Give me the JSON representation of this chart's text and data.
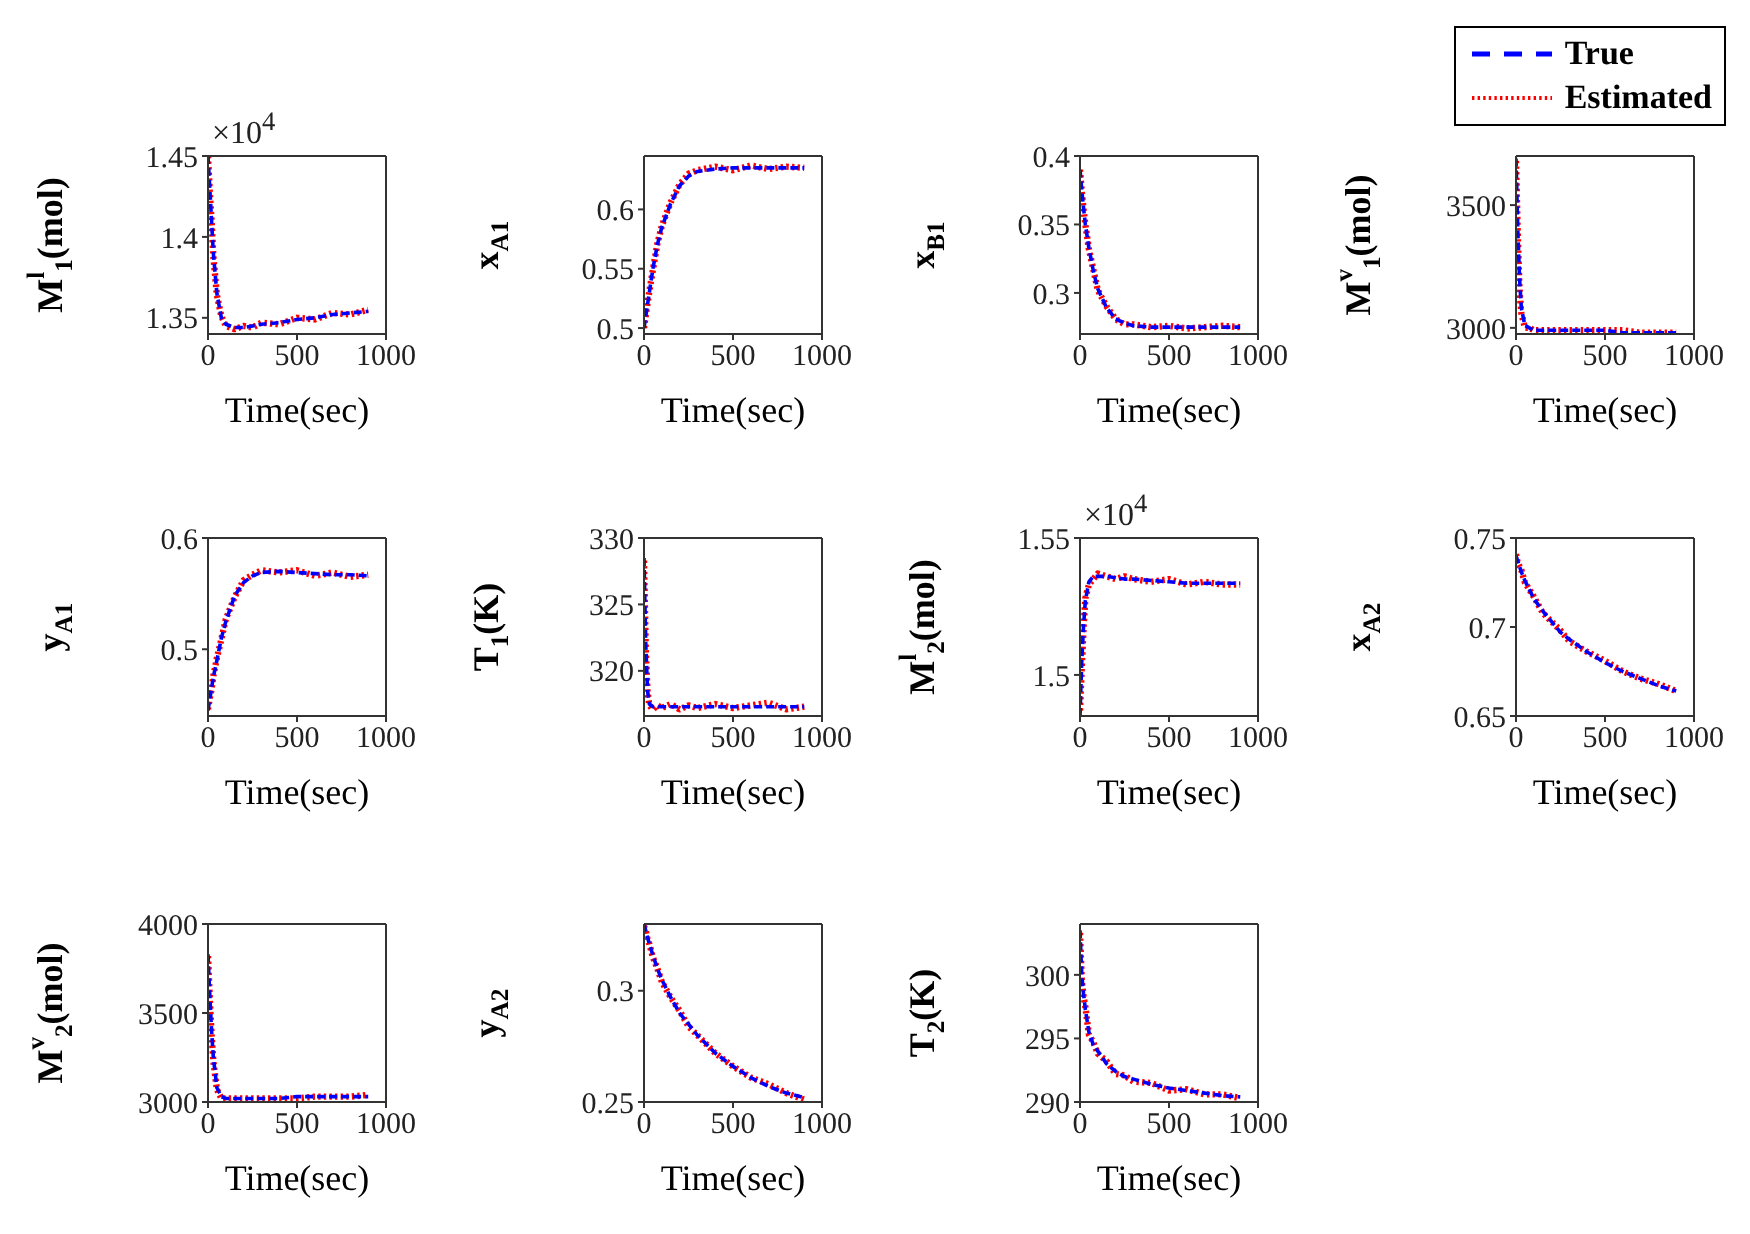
{
  "chart_data": [
    {
      "type": "line",
      "ylabel": "M$^{l}$$_{1}$(mol)",
      "xlabel": "Time(sec)",
      "annotations": [
        "×10$^{4}$"
      ],
      "x": [
        0,
        10,
        20,
        30,
        50,
        75,
        100,
        150,
        200,
        250,
        300,
        400,
        500,
        600,
        700,
        800,
        900
      ],
      "xlim": [
        0,
        1000
      ],
      "xticks": [
        0,
        500,
        1000
      ],
      "ylim": [
        1.34,
        1.45
      ],
      "yticks": [
        1.35,
        1.4,
        1.45
      ],
      "series": [
        {
          "color": "#0000ff",
          "line_style": "dashed",
          "values": [
            1.45,
            1.43,
            1.41,
            1.39,
            1.365,
            1.35,
            1.346,
            1.344,
            1.344,
            1.345,
            1.346,
            1.347,
            1.349,
            1.35,
            1.352,
            1.353,
            1.354
          ]
        },
        {
          "color": "#ff0000",
          "line_style": "dotted",
          "values": [
            1.45,
            1.428,
            1.41,
            1.388,
            1.364,
            1.351,
            1.345,
            1.343,
            1.345,
            1.344,
            1.347,
            1.346,
            1.35,
            1.349,
            1.353,
            1.352,
            1.355
          ]
        }
      ]
    },
    {
      "type": "line",
      "ylabel": "x$_{A1}$",
      "xlabel": "Time(sec)",
      "x": [
        0,
        10,
        20,
        30,
        50,
        75,
        100,
        150,
        200,
        250,
        300,
        400,
        500,
        600,
        700,
        800,
        900
      ],
      "xlim": [
        0,
        1000
      ],
      "xticks": [
        0,
        500,
        1000
      ],
      "ylim": [
        0.495,
        0.645
      ],
      "yticks": [
        0.5,
        0.55,
        0.6
      ],
      "series": [
        {
          "color": "#0000ff",
          "line_style": "dashed",
          "values": [
            0.5,
            0.51,
            0.52,
            0.53,
            0.55,
            0.57,
            0.585,
            0.605,
            0.62,
            0.628,
            0.632,
            0.634,
            0.635,
            0.635,
            0.635,
            0.635,
            0.635
          ]
        },
        {
          "color": "#ff0000",
          "line_style": "dotted",
          "values": [
            0.5,
            0.511,
            0.521,
            0.531,
            0.549,
            0.571,
            0.586,
            0.606,
            0.621,
            0.63,
            0.633,
            0.636,
            0.633,
            0.637,
            0.634,
            0.636,
            0.635
          ]
        }
      ]
    },
    {
      "type": "line",
      "ylabel": "x$_{B1}$",
      "xlabel": "Time(sec)",
      "x": [
        0,
        10,
        20,
        30,
        50,
        75,
        100,
        150,
        200,
        250,
        300,
        400,
        500,
        600,
        700,
        800,
        900
      ],
      "xlim": [
        0,
        1000
      ],
      "xticks": [
        0,
        500,
        1000
      ],
      "ylim": [
        0.27,
        0.4
      ],
      "yticks": [
        0.3,
        0.35,
        0.4
      ],
      "series": [
        {
          "color": "#0000ff",
          "line_style": "dashed",
          "values": [
            0.39,
            0.375,
            0.362,
            0.35,
            0.333,
            0.316,
            0.303,
            0.289,
            0.281,
            0.278,
            0.276,
            0.275,
            0.275,
            0.275,
            0.275,
            0.275,
            0.275
          ]
        },
        {
          "color": "#ff0000",
          "line_style": "dotted",
          "values": [
            0.39,
            0.374,
            0.361,
            0.35,
            0.332,
            0.317,
            0.302,
            0.29,
            0.281,
            0.277,
            0.277,
            0.275,
            0.276,
            0.274,
            0.275,
            0.276,
            0.275
          ]
        }
      ]
    },
    {
      "type": "line",
      "ylabel": "M$^{v}$$_{1}$(mol)",
      "xlabel": "Time(sec)",
      "legend": "top",
      "x": [
        0,
        10,
        20,
        30,
        50,
        75,
        100,
        150,
        200,
        250,
        300,
        400,
        500,
        600,
        700,
        800,
        900
      ],
      "xlim": [
        0,
        1000
      ],
      "xticks": [
        0,
        500,
        1000
      ],
      "ylim": [
        2975,
        3700
      ],
      "yticks": [
        3000,
        3500
      ],
      "series": [
        {
          "name": "True",
          "color": "#0000ff",
          "line_style": "dashed",
          "values": [
            3690,
            3400,
            3200,
            3080,
            3010,
            3000,
            2990,
            2990,
            2990,
            2990,
            2990,
            2990,
            2990,
            2980,
            2980,
            2980,
            2980
          ]
        },
        {
          "name": "Estimated",
          "color": "#ff0000",
          "line_style": "dotted",
          "values": [
            3680,
            3380,
            3150,
            3060,
            3000,
            3000,
            2990,
            2990,
            2990,
            2990,
            2990,
            2990,
            2990,
            2990,
            2980,
            2980,
            2980
          ]
        }
      ]
    },
    {
      "type": "line",
      "ylabel": "y$_{A1}$",
      "xlabel": "Time(sec)",
      "x": [
        0,
        10,
        20,
        30,
        50,
        75,
        100,
        150,
        200,
        250,
        300,
        400,
        500,
        600,
        700,
        800,
        900
      ],
      "xlim": [
        0,
        1000
      ],
      "xticks": [
        0,
        500,
        1000
      ],
      "ylim": [
        0.44,
        0.6
      ],
      "yticks": [
        0.5,
        0.6
      ],
      "series": [
        {
          "color": "#0000ff",
          "line_style": "dashed",
          "values": [
            0.445,
            0.455,
            0.465,
            0.475,
            0.49,
            0.51,
            0.525,
            0.548,
            0.56,
            0.566,
            0.569,
            0.57,
            0.569,
            0.568,
            0.567,
            0.567,
            0.566
          ]
        },
        {
          "color": "#ff0000",
          "line_style": "dotted",
          "values": [
            0.446,
            0.456,
            0.464,
            0.476,
            0.492,
            0.509,
            0.527,
            0.547,
            0.562,
            0.567,
            0.571,
            0.569,
            0.571,
            0.566,
            0.569,
            0.565,
            0.567
          ]
        }
      ]
    },
    {
      "type": "line",
      "ylabel": "T$_{1}$(K)",
      "xlabel": "Time(sec)",
      "x": [
        0,
        10,
        20,
        30,
        50,
        75,
        100,
        150,
        200,
        250,
        300,
        400,
        500,
        600,
        700,
        800,
        900
      ],
      "xlim": [
        0,
        1000
      ],
      "xticks": [
        0,
        500,
        1000
      ],
      "ylim": [
        316.6,
        330
      ],
      "yticks": [
        320,
        325,
        330
      ],
      "series": [
        {
          "color": "#0000ff",
          "line_style": "dashed",
          "values": [
            328.5,
            322,
            318.5,
            317.5,
            317.3,
            317.3,
            317.3,
            317.3,
            317.3,
            317.3,
            317.3,
            317.3,
            317.3,
            317.3,
            317.3,
            317.3,
            317.3
          ]
        },
        {
          "color": "#ff0000",
          "line_style": "dotted",
          "values": [
            328.3,
            321.5,
            318.4,
            317.4,
            317.1,
            317.4,
            317.2,
            317.5,
            317.1,
            317.4,
            317.2,
            317.5,
            317.2,
            317.4,
            317.6,
            317.1,
            317.3
          ]
        }
      ]
    },
    {
      "type": "line",
      "ylabel": "M$^{l}$$_{2}$(mol)",
      "xlabel": "Time(sec)",
      "annotations": [
        "×10$^{4}$"
      ],
      "x": [
        0,
        10,
        20,
        30,
        50,
        75,
        100,
        150,
        200,
        250,
        300,
        400,
        500,
        600,
        700,
        800,
        900
      ],
      "xlim": [
        0,
        1000
      ],
      "xticks": [
        0,
        500,
        1000
      ],
      "ylim": [
        1.485,
        1.55
      ],
      "yticks": [
        1.5,
        1.55
      ],
      "series": [
        {
          "color": "#0000ff",
          "line_style": "dashed",
          "values": [
            1.485,
            1.505,
            1.518,
            1.527,
            1.534,
            1.536,
            1.536,
            1.536,
            1.5355,
            1.535,
            1.535,
            1.5345,
            1.534,
            1.5335,
            1.5335,
            1.5335,
            1.5335
          ]
        },
        {
          "color": "#ff0000",
          "line_style": "dotted",
          "values": [
            1.487,
            1.503,
            1.517,
            1.528,
            1.533,
            1.535,
            1.537,
            1.536,
            1.535,
            1.536,
            1.535,
            1.534,
            1.535,
            1.533,
            1.534,
            1.533,
            1.533
          ]
        }
      ]
    },
    {
      "type": "line",
      "ylabel": "x$_{A2}$",
      "xlabel": "Time(sec)",
      "x": [
        0,
        10,
        20,
        30,
        50,
        75,
        100,
        150,
        200,
        250,
        300,
        400,
        500,
        600,
        700,
        800,
        900
      ],
      "xlim": [
        0,
        1000
      ],
      "xticks": [
        0,
        500,
        1000
      ],
      "ylim": [
        0.65,
        0.75
      ],
      "yticks": [
        0.65,
        0.7,
        0.75
      ],
      "series": [
        {
          "color": "#0000ff",
          "line_style": "dashed",
          "values": [
            0.74,
            0.737,
            0.734,
            0.731,
            0.726,
            0.721,
            0.716,
            0.709,
            0.703,
            0.697,
            0.693,
            0.686,
            0.68,
            0.675,
            0.671,
            0.667,
            0.664
          ]
        },
        {
          "color": "#ff0000",
          "line_style": "dotted",
          "values": [
            0.741,
            0.736,
            0.734,
            0.732,
            0.725,
            0.721,
            0.717,
            0.708,
            0.703,
            0.698,
            0.692,
            0.686,
            0.681,
            0.675,
            0.671,
            0.668,
            0.664
          ]
        }
      ]
    },
    {
      "type": "line",
      "ylabel": "M$^{v}$$_{2}$(mol)",
      "xlabel": "Time(sec)",
      "x": [
        0,
        10,
        20,
        30,
        50,
        75,
        100,
        150,
        200,
        250,
        300,
        400,
        500,
        600,
        700,
        800,
        900
      ],
      "xlim": [
        0,
        1000
      ],
      "xticks": [
        0,
        500,
        1000
      ],
      "ylim": [
        3000,
        4000
      ],
      "yticks": [
        3000,
        3500,
        4000
      ],
      "series": [
        {
          "color": "#0000ff",
          "line_style": "dashed",
          "values": [
            3830,
            3600,
            3400,
            3250,
            3080,
            3030,
            3020,
            3020,
            3020,
            3020,
            3020,
            3020,
            3030,
            3030,
            3030,
            3030,
            3030
          ]
        },
        {
          "color": "#ff0000",
          "line_style": "dotted",
          "values": [
            3820,
            3580,
            3380,
            3230,
            3070,
            3020,
            3020,
            3020,
            3020,
            3020,
            3020,
            3020,
            3020,
            3030,
            3030,
            3030,
            3040
          ]
        }
      ]
    },
    {
      "type": "line",
      "ylabel": "y$_{A2}$",
      "xlabel": "Time(sec)",
      "x": [
        0,
        10,
        20,
        30,
        50,
        75,
        100,
        150,
        200,
        250,
        300,
        400,
        500,
        600,
        700,
        800,
        900
      ],
      "xlim": [
        0,
        1000
      ],
      "xticks": [
        0,
        500,
        1000
      ],
      "ylim": [
        0.25,
        0.33
      ],
      "yticks": [
        0.25,
        0.3
      ],
      "series": [
        {
          "color": "#0000ff",
          "line_style": "dashed",
          "values": [
            0.33,
            0.327,
            0.324,
            0.321,
            0.316,
            0.31,
            0.305,
            0.297,
            0.29,
            0.285,
            0.28,
            0.272,
            0.266,
            0.261,
            0.257,
            0.254,
            0.252
          ]
        },
        {
          "color": "#ff0000",
          "line_style": "dotted",
          "values": [
            0.329,
            0.327,
            0.323,
            0.321,
            0.315,
            0.31,
            0.304,
            0.297,
            0.291,
            0.284,
            0.28,
            0.272,
            0.266,
            0.261,
            0.258,
            0.254,
            0.251
          ]
        }
      ]
    },
    {
      "type": "line",
      "ylabel": "T$_{2}$(K)",
      "xlabel": "Time(sec)",
      "x": [
        0,
        10,
        20,
        30,
        50,
        75,
        100,
        150,
        200,
        250,
        300,
        400,
        500,
        600,
        700,
        800,
        900
      ],
      "xlim": [
        0,
        1000
      ],
      "xticks": [
        0,
        500,
        1000
      ],
      "ylim": [
        290,
        304
      ],
      "yticks": [
        290,
        295,
        300
      ],
      "series": [
        {
          "color": "#0000ff",
          "line_style": "dashed",
          "values": [
            303.5,
            300,
            298.5,
            297.3,
            295.5,
            294.5,
            294,
            293,
            292.4,
            292,
            291.8,
            291.4,
            291.1,
            290.9,
            290.7,
            290.5,
            290.4
          ]
        },
        {
          "color": "#ff0000",
          "line_style": "dotted",
          "values": [
            303.3,
            299.6,
            298.3,
            297.5,
            295.3,
            294.7,
            293.8,
            293.2,
            292.2,
            292.1,
            291.6,
            291.5,
            290.9,
            291,
            290.6,
            290.6,
            290.3
          ]
        }
      ]
    }
  ]
}
